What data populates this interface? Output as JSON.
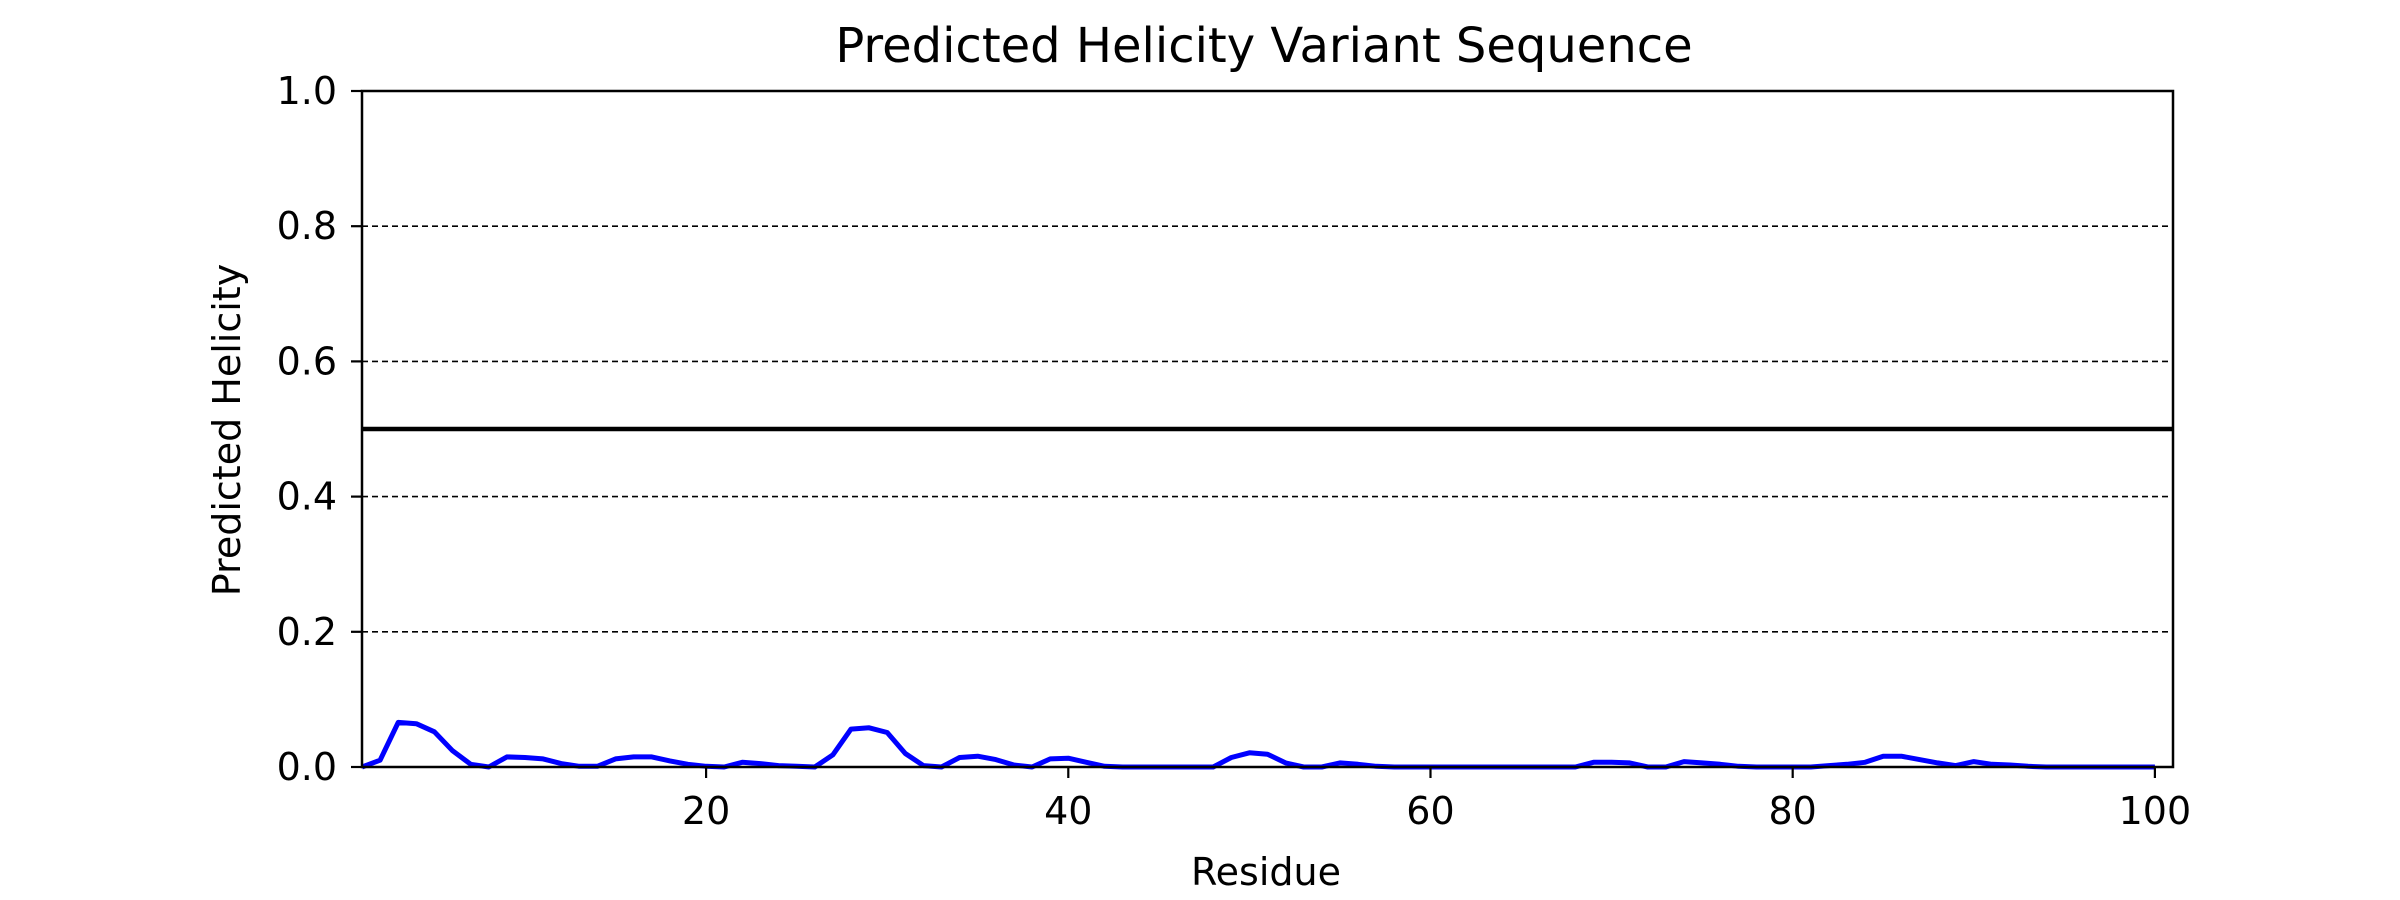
{
  "chart_data": {
    "type": "line",
    "title": "Predicted Helicity Variant Sequence",
    "xlabel": "Residue",
    "ylabel": "Predicted Helicity",
    "xlim": [
      1,
      101
    ],
    "ylim": [
      0,
      1.0
    ],
    "xticks": [
      20,
      40,
      60,
      80,
      100
    ],
    "yticks": [
      0.0,
      0.2,
      0.4,
      0.6,
      0.8,
      1.0
    ],
    "ytick_labels": [
      "0.0",
      "0.2",
      "0.4",
      "0.6",
      "0.8",
      "1.0"
    ],
    "grid": "y-dashed",
    "threshold": {
      "y": 0.5,
      "color": "#000000"
    },
    "series": [
      {
        "color": "#0000ff",
        "x": [
          1,
          2,
          3,
          4,
          5,
          6,
          7,
          8,
          9,
          10,
          11,
          12,
          13,
          14,
          15,
          16,
          17,
          18,
          19,
          20,
          21,
          22,
          23,
          24,
          25,
          26,
          27,
          28,
          29,
          30,
          31,
          32,
          33,
          34,
          35,
          36,
          37,
          38,
          39,
          40,
          41,
          42,
          43,
          44,
          45,
          46,
          47,
          48,
          49,
          50,
          51,
          52,
          53,
          54,
          55,
          56,
          57,
          58,
          59,
          60,
          61,
          62,
          63,
          64,
          65,
          66,
          67,
          68,
          69,
          70,
          71,
          72,
          73,
          74,
          75,
          76,
          77,
          78,
          79,
          80,
          81,
          82,
          83,
          84,
          85,
          86,
          87,
          88,
          89,
          90,
          91,
          92,
          93,
          94,
          95,
          96,
          97,
          98,
          99,
          100
        ],
        "y": [
          0.0,
          0.01,
          0.066,
          0.064,
          0.052,
          0.024,
          0.004,
          0.0,
          0.015,
          0.014,
          0.012,
          0.005,
          0.001,
          0.001,
          0.012,
          0.015,
          0.015,
          0.009,
          0.004,
          0.001,
          0.0,
          0.007,
          0.005,
          0.002,
          0.001,
          0.0,
          0.018,
          0.056,
          0.058,
          0.051,
          0.02,
          0.002,
          0.0,
          0.014,
          0.016,
          0.011,
          0.003,
          0.0,
          0.012,
          0.013,
          0.007,
          0.001,
          0.0,
          0.0,
          0.0,
          0.0,
          0.0,
          0.0,
          0.014,
          0.021,
          0.019,
          0.006,
          0.0,
          0.0,
          0.006,
          0.004,
          0.001,
          0.0,
          0.0,
          0.0,
          0.0,
          0.0,
          0.0,
          0.0,
          0.0,
          0.0,
          0.0,
          0.0,
          0.007,
          0.007,
          0.006,
          0.0,
          0.0,
          0.008,
          0.006,
          0.004,
          0.001,
          0.0,
          0.0,
          0.0,
          0.0,
          0.002,
          0.004,
          0.007,
          0.016,
          0.016,
          0.011,
          0.006,
          0.002,
          0.008,
          0.004,
          0.003,
          0.001,
          0.0,
          0.0,
          0.0,
          0.0,
          0.0,
          0.0,
          0.0
        ]
      }
    ]
  }
}
